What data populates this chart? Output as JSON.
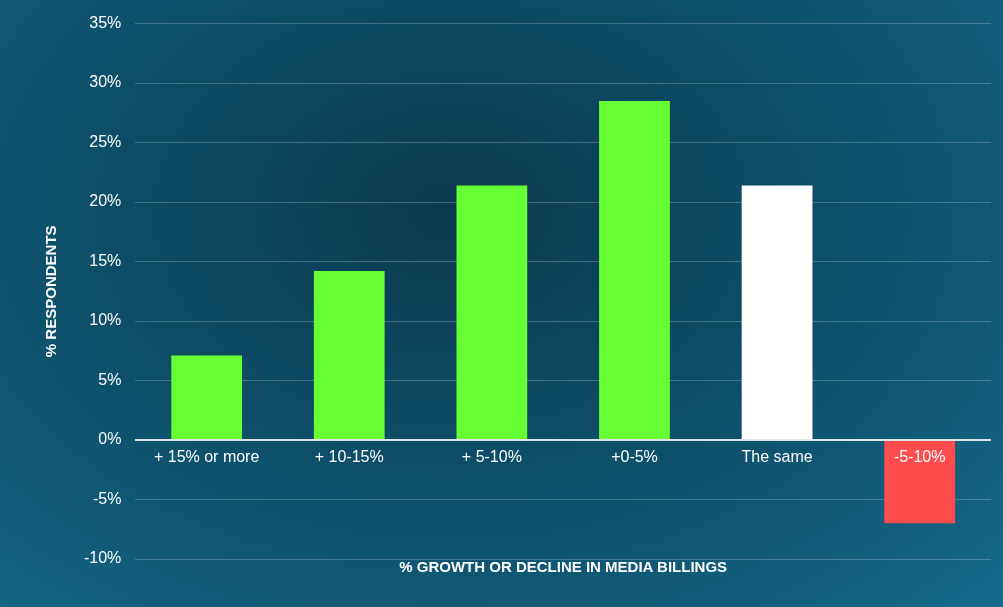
{
  "chart_data": {
    "type": "bar",
    "xlabel": "% GROWTH OR DECLINE IN MEDIA BILLINGS",
    "ylabel": "% RESPONDENTS",
    "categories": [
      "+ 15% or more",
      "+ 10-15%",
      "+ 5-10%",
      "+0-5%",
      "The same",
      "-5-10%"
    ],
    "values": [
      7.1,
      14.2,
      21.4,
      28.5,
      21.4,
      -7.0
    ],
    "colors": [
      "#66ff33",
      "#66ff33",
      "#66ff33",
      "#66ff33",
      "#ffffff",
      "#ff4d4d"
    ],
    "ylim": [
      -10,
      35
    ],
    "yticks": [
      {
        "value": -10,
        "label": "-10%"
      },
      {
        "value": -5,
        "label": "-5%"
      },
      {
        "value": 0,
        "label": "0%"
      },
      {
        "value": 5,
        "label": "5%"
      },
      {
        "value": 10,
        "label": "10%"
      },
      {
        "value": 15,
        "label": "15%"
      },
      {
        "value": 20,
        "label": "20%"
      },
      {
        "value": 25,
        "label": "25%"
      },
      {
        "value": 30,
        "label": "30%"
      },
      {
        "value": 35,
        "label": "35%"
      }
    ],
    "grid": "y",
    "legend": false
  }
}
